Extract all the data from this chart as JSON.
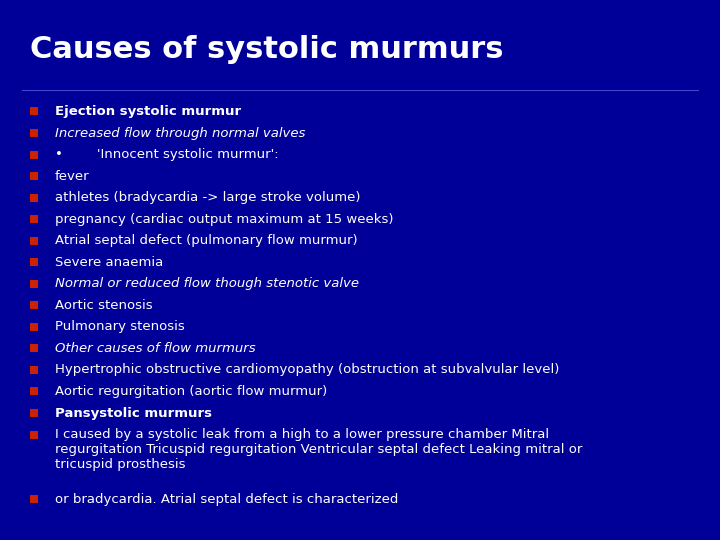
{
  "title": "Causes of systolic murmurs",
  "background_color": "#000099",
  "title_color": "#FFFFFF",
  "title_fontsize": 22,
  "bullet_color": "#CC2200",
  "text_color": "#FFFFFF",
  "bullet_items": [
    {
      "text": "Ejection systolic murmur",
      "style": "bold"
    },
    {
      "text": "Increased flow through normal valves",
      "style": "italic"
    },
    {
      "text": "•        'Innocent systolic murmur':",
      "style": "normal"
    },
    {
      "text": "fever",
      "style": "normal"
    },
    {
      "text": "athletes (bradycardia -> large stroke volume)",
      "style": "normal"
    },
    {
      "text": "pregnancy (cardiac output maximum at 15 weeks)",
      "style": "normal"
    },
    {
      "text": "Atrial septal defect (pulmonary flow murmur)",
      "style": "normal"
    },
    {
      "text": "Severe anaemia",
      "style": "normal"
    },
    {
      "text": "Normal or reduced flow though stenotic valve",
      "style": "italic"
    },
    {
      "text": "Aortic stenosis",
      "style": "normal"
    },
    {
      "text": "Pulmonary stenosis",
      "style": "normal"
    },
    {
      "text": "Other causes of flow murmurs",
      "style": "italic"
    },
    {
      "text": "Hypertrophic obstructive cardiomyopathy (obstruction at subvalvular level)",
      "style": "normal"
    },
    {
      "text": "Aortic regurgitation (aortic flow murmur)",
      "style": "normal"
    },
    {
      "text": "Pansystolic murmurs",
      "style": "bold"
    },
    {
      "text": "I caused by a systolic leak from a high to a lower pressure chamber Mitral\nregurgitation Tricuspid regurgitation Ventricular septal defect Leaking mitral or\ntricuspid prosthesis",
      "style": "normal"
    },
    {
      "text": "or bradycardia. Atrial septal defect is characterized",
      "style": "normal"
    }
  ],
  "body_fontsize": 9.5,
  "figwidth": 7.2,
  "figheight": 5.4,
  "dpi": 100
}
